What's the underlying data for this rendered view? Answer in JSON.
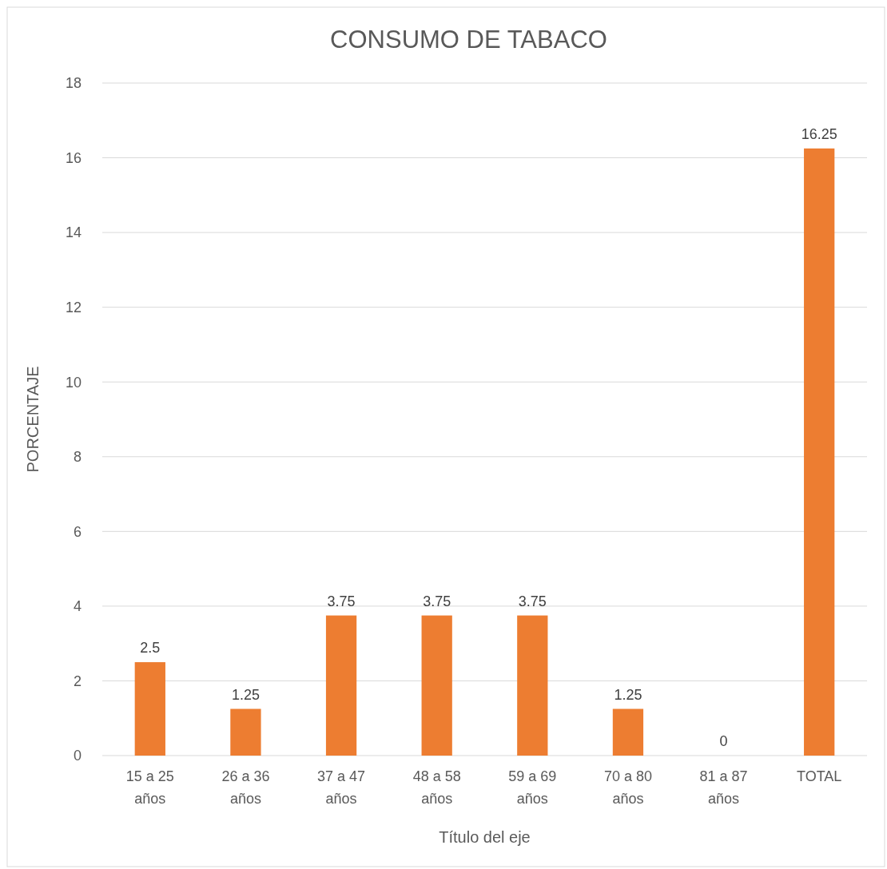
{
  "chart_data": {
    "type": "bar",
    "title": "CONSUMO DE TABACO",
    "xlabel": "Título del eje",
    "ylabel": "PORCENTAJE",
    "categories": [
      "15 a 25 años",
      "26 a 36 años",
      "37 a 47 años",
      "48 a 58 años",
      "59 a 69 años",
      "70 a 80 años",
      "81 a 87 años",
      "TOTAL"
    ],
    "values": [
      2.5,
      1.25,
      3.75,
      3.75,
      3.75,
      1.25,
      0,
      16.25
    ],
    "color": "#ed7d31",
    "ylim": [
      0,
      18
    ],
    "yticks": [
      0,
      2,
      4,
      6,
      8,
      10,
      12,
      14,
      16,
      18
    ],
    "grid": "y",
    "data_labels": true
  }
}
